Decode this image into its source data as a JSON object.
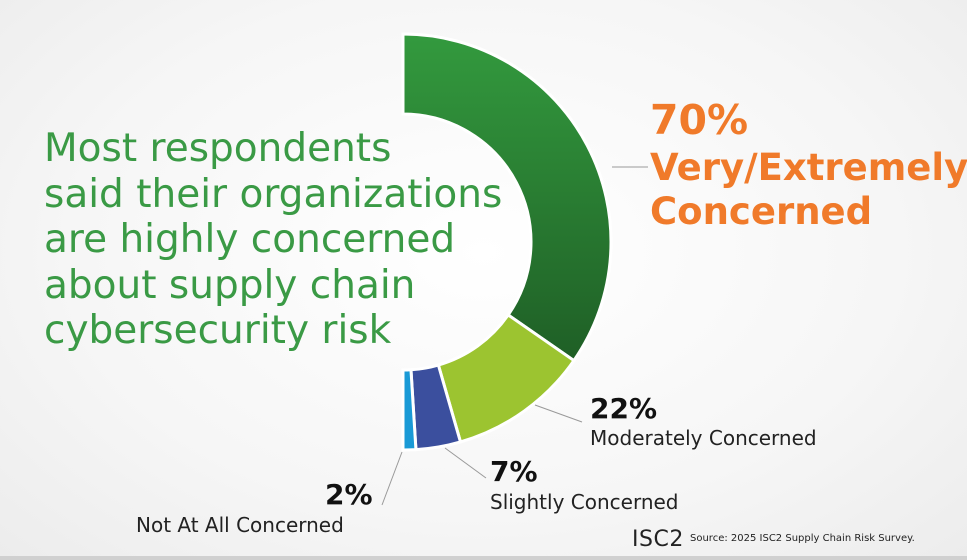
{
  "headline": [
    "Most respondents",
    "said their organizations",
    "are highly concerned",
    "about supply chain",
    "cybersecurity risk"
  ],
  "chart_data": {
    "type": "pie",
    "variant": "half-donut",
    "title": "Most respondents said their organizations are highly concerned about supply chain cybersecurity risk",
    "categories": [
      "Very/Extremely Concerned",
      "Moderately Concerned",
      "Slightly Concerned",
      "Not At All Concerned"
    ],
    "values": [
      70,
      22,
      7,
      2
    ],
    "value_labels": [
      "70%",
      "22%",
      "7%",
      "2%"
    ],
    "colors": [
      "#2a8636",
      "#9cc430",
      "#3b4f9e",
      "#1a9ad6"
    ]
  },
  "labels": {
    "very": {
      "pct": "70%",
      "text": [
        "Very/Extremely",
        "Concerned"
      ]
    },
    "moderately": {
      "pct": "22%",
      "text": "Moderately Concerned"
    },
    "slightly": {
      "pct": "7%",
      "text": "Slightly Concerned"
    },
    "not_at_all": {
      "pct": "2%",
      "text": "Not At All Concerned"
    }
  },
  "footer": {
    "logo": "ISC2",
    "source": "Source: 2025 ISC2 Supply Chain Risk Survey."
  },
  "colors": {
    "headline": "#3a9a45",
    "accent": "#f07a2a"
  }
}
